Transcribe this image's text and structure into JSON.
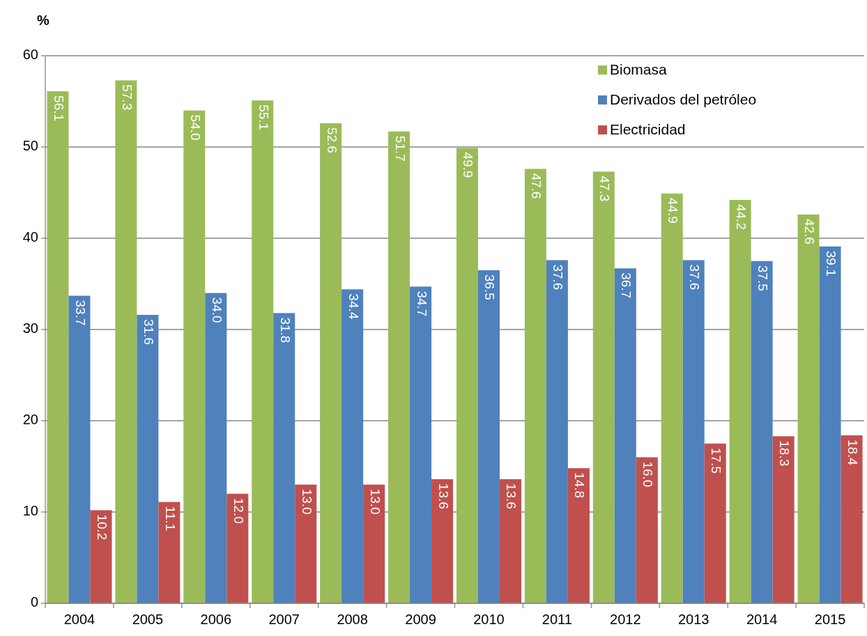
{
  "chart_data": {
    "type": "bar",
    "ylabel": "%",
    "categories": [
      "2004",
      "2005",
      "2006",
      "2007",
      "2008",
      "2009",
      "2010",
      "2011",
      "2012",
      "2013",
      "2014",
      "2015"
    ],
    "series": [
      {
        "name": "Biomasa",
        "color": "#9bbb59",
        "values": [
          56.1,
          57.3,
          54.0,
          55.1,
          52.6,
          51.7,
          49.9,
          47.6,
          47.3,
          44.9,
          44.2,
          42.6
        ],
        "value_labels": [
          "56.1",
          "57.3",
          "54.0",
          "55.1",
          "52.6",
          "51.7",
          "49.9",
          "47.6",
          "47.3",
          "44.9",
          "44.2",
          "42.6"
        ]
      },
      {
        "name": "Derivados del petróleo",
        "color": "#4f81bd",
        "values": [
          33.7,
          31.6,
          34.0,
          31.8,
          34.4,
          34.7,
          36.5,
          37.6,
          36.7,
          37.6,
          37.5,
          39.1
        ],
        "value_labels": [
          "33.7",
          "31.6",
          "34.0",
          "31.8",
          "34.4",
          "34.7",
          "36.5",
          "37.6",
          "36.7",
          "37.6",
          "37.5",
          "39.1"
        ]
      },
      {
        "name": "Electricidad",
        "color": "#c0504d",
        "values": [
          10.2,
          11.1,
          12.0,
          13.0,
          13.0,
          13.6,
          13.6,
          14.8,
          16.0,
          17.5,
          18.3,
          18.4
        ],
        "value_labels": [
          "10.2",
          "11.1",
          "12.0",
          "13.0",
          "13.0",
          "13.6",
          "13.6",
          "14.8",
          "16.0",
          "17.5",
          "18.3",
          "18.4"
        ]
      }
    ],
    "ylim": [
      0,
      60
    ],
    "yticks": [
      0,
      10,
      20,
      30,
      40,
      50,
      60
    ],
    "grid": "y",
    "legend": "top right"
  }
}
